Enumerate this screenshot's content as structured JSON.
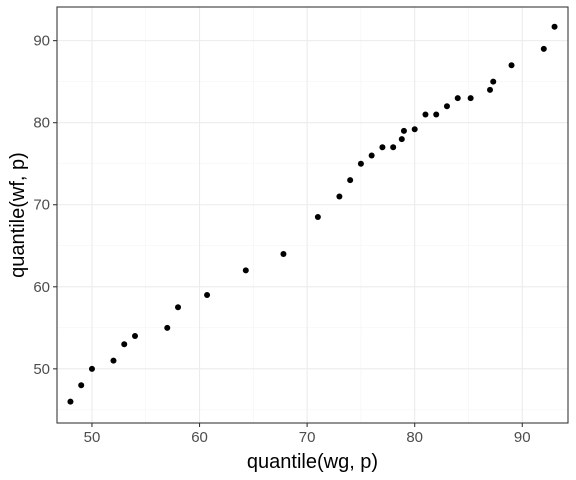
{
  "chart_data": {
    "type": "scatter",
    "title": "",
    "xlabel": "quantile(wg, p)",
    "ylabel": "quantile(wf, p)",
    "xlim": [
      46.75,
      94.25
    ],
    "ylim": [
      43.4,
      94.1
    ],
    "x_ticks": [
      50,
      60,
      70,
      80,
      90
    ],
    "y_ticks": [
      50,
      60,
      70,
      80,
      90
    ],
    "grid": true,
    "legend": "none",
    "point_color": "#000000",
    "points": [
      {
        "x": 48.0,
        "y": 46.0
      },
      {
        "x": 49.0,
        "y": 48.0
      },
      {
        "x": 50.0,
        "y": 50.0
      },
      {
        "x": 52.0,
        "y": 51.0
      },
      {
        "x": 53.0,
        "y": 53.0
      },
      {
        "x": 54.0,
        "y": 54.0
      },
      {
        "x": 57.0,
        "y": 55.0
      },
      {
        "x": 58.0,
        "y": 57.5
      },
      {
        "x": 60.7,
        "y": 59.0
      },
      {
        "x": 64.3,
        "y": 62.0
      },
      {
        "x": 67.8,
        "y": 64.0
      },
      {
        "x": 71.0,
        "y": 68.5
      },
      {
        "x": 73.0,
        "y": 71.0
      },
      {
        "x": 74.0,
        "y": 73.0
      },
      {
        "x": 75.0,
        "y": 75.0
      },
      {
        "x": 76.0,
        "y": 76.0
      },
      {
        "x": 77.0,
        "y": 77.0
      },
      {
        "x": 78.0,
        "y": 77.0
      },
      {
        "x": 78.8,
        "y": 78.0
      },
      {
        "x": 79.0,
        "y": 79.0
      },
      {
        "x": 80.0,
        "y": 79.2
      },
      {
        "x": 81.0,
        "y": 81.0
      },
      {
        "x": 82.0,
        "y": 81.0
      },
      {
        "x": 83.0,
        "y": 82.0
      },
      {
        "x": 84.0,
        "y": 83.0
      },
      {
        "x": 85.2,
        "y": 83.0
      },
      {
        "x": 87.0,
        "y": 84.0
      },
      {
        "x": 87.3,
        "y": 85.0
      },
      {
        "x": 89.0,
        "y": 87.0
      },
      {
        "x": 92.0,
        "y": 89.0
      },
      {
        "x": 93.0,
        "y": 91.7
      }
    ]
  }
}
